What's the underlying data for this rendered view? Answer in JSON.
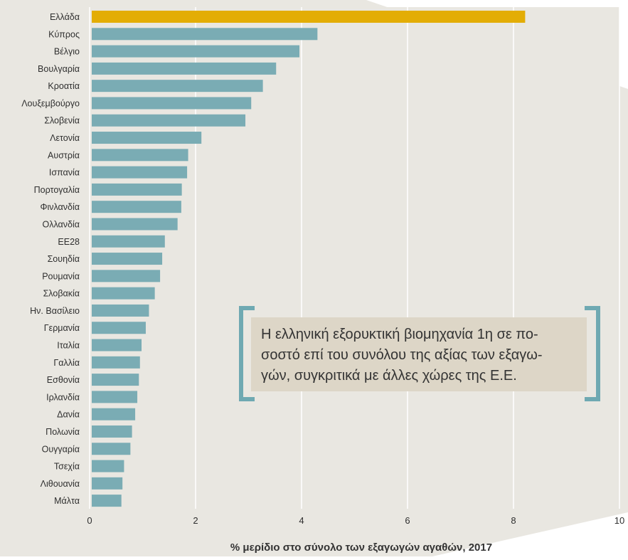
{
  "chart_data": {
    "type": "bar",
    "orientation": "horizontal",
    "categories": [
      "Ελλάδα",
      "Κύπρος",
      "Βέλγιο",
      "Βουλγαρία",
      "Κροατία",
      "Λουξεμβούργο",
      "Σλοβενία",
      "Λετονία",
      "Αυστρία",
      "Ισπανία",
      "Πορτογαλία",
      "Φινλανδία",
      "Ολλανδία",
      "ΕΕ28",
      "Σουηδία",
      "Ρουμανία",
      "Σλοβακία",
      "Ην. Βασίλειο",
      "Γερμανία",
      "Ιταλία",
      "Γαλλία",
      "Εσθονία",
      "Ιρλανδία",
      "Δανία",
      "Πολωνία",
      "Ουγγαρία",
      "Τσεχία",
      "Λιθουανία",
      "Μάλτα"
    ],
    "values": [
      8.22,
      4.3,
      3.96,
      3.52,
      3.27,
      3.05,
      2.94,
      2.11,
      1.86,
      1.84,
      1.74,
      1.73,
      1.66,
      1.42,
      1.37,
      1.33,
      1.23,
      1.12,
      1.06,
      0.98,
      0.95,
      0.93,
      0.9,
      0.86,
      0.8,
      0.77,
      0.65,
      0.62,
      0.6
    ],
    "highlight_index": 0,
    "xticks": [
      "0",
      "2",
      "4",
      "6",
      "8",
      "10"
    ],
    "xlim": [
      0,
      10
    ],
    "xlabel": "% μερίδιο στο σύνολο των εξαγωγών αγαθών, 2017",
    "title": "",
    "ylabel": "",
    "grid": "vertical",
    "colors": {
      "bar": "#7aacb4",
      "highlight": "#e3ad05",
      "background_panel": "#e9e7e1",
      "gridline": "#ffffff",
      "callout_bg": "#ddd6c7",
      "bracket": "#6fa9b2"
    },
    "annotation": "Η ελληνική εξορυκτική βιομηχανία 1η σε πο-\nσοστό επί του συνόλου της αξίας των εξαγω-\nγών, συγκριτικά με άλλες χώρες της Ε.Ε."
  }
}
